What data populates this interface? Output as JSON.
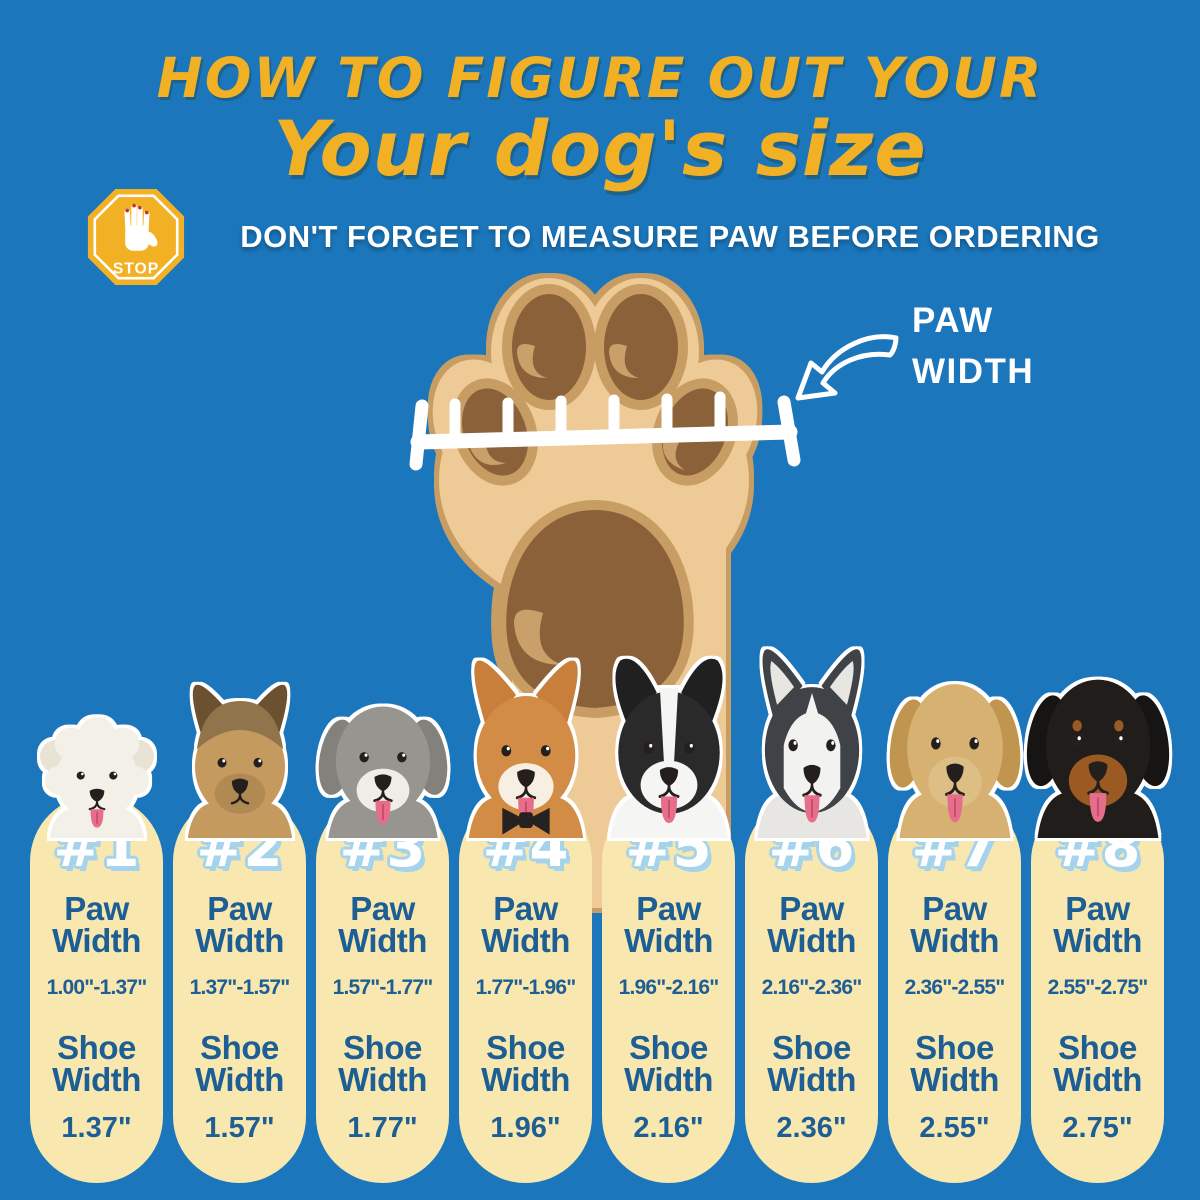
{
  "header": {
    "line1": "HOW TO FIGURE OUT YOUR",
    "line2": "Your dog's size",
    "subtitle": "DON'T FORGET TO MEASURE PAW BEFORE ORDERING",
    "stop_label": "STOP"
  },
  "paw_label": {
    "line1": "PAW",
    "line2": "WIDTH"
  },
  "labels": {
    "paw_width": "Paw Width",
    "shoe_width": "Shoe Width"
  },
  "colors": {
    "background": "#1B76BB",
    "title_yellow": "#F2B124",
    "cream": "#F8E7AE",
    "text_blue": "#1D5E94",
    "number_outline": "#A5D3EC",
    "paw_light": "#EDCA96",
    "paw_mid": "#C79D63",
    "pad_dark": "#8B6139",
    "pad_highlight": "#C9A06A"
  },
  "sizes": [
    {
      "number": "#1",
      "paw_range": "1.00\"-1.37\"",
      "shoe_width": "1.37\"",
      "dog": {
        "breed": "bichon-frise",
        "head": "#F3F0E8",
        "ear": "#E9E3D6",
        "muzzle": "#F3F0E8",
        "ear_type": "round",
        "fluff": true,
        "tongue": true
      }
    },
    {
      "number": "#2",
      "paw_range": "1.37\"-1.57\"",
      "shoe_width": "1.57\"",
      "dog": {
        "breed": "yorkshire-terrier",
        "head": "#C59A5E",
        "crown": "#8F744C",
        "ear": "#6B512F",
        "muzzle": "#B18952",
        "ear_type": "pointy",
        "tongue": false
      }
    },
    {
      "number": "#3",
      "paw_range": "1.57\"-1.77\"",
      "shoe_width": "1.77\"",
      "dog": {
        "breed": "bearded-collie",
        "head": "#97958F",
        "ear": "#83817B",
        "muzzle": "#EFEDE6",
        "ear_type": "floppy",
        "tongue": true
      }
    },
    {
      "number": "#4",
      "paw_range": "1.77\"-1.96\"",
      "shoe_width": "1.96\"",
      "dog": {
        "breed": "shiba-inu",
        "head": "#D28C45",
        "ear": "#C97F3C",
        "muzzle": "#F6EFE2",
        "ear_type": "pointy",
        "tongue": true,
        "accessory": "bowtie",
        "accessory_color": "#26221F"
      }
    },
    {
      "number": "#5",
      "paw_range": "1.96\"-2.16\"",
      "shoe_width": "2.16\"",
      "dog": {
        "breed": "border-collie",
        "head": "#2A2A2A",
        "ear": "#202020",
        "muzzle": "#F5F5F3",
        "blaze": "#F5F5F3",
        "body": "#F5F5F3",
        "ear_type": "semi",
        "tongue": true
      }
    },
    {
      "number": "#6",
      "paw_range": "2.16\"-2.36\"",
      "shoe_width": "2.36\"",
      "dog": {
        "breed": "siberian-husky",
        "head": "#3F4347",
        "ear": "#3F4347",
        "ear_inner": "#E8E6E2",
        "muzzle": "#F2F2F0",
        "mask": "#F2F2F0",
        "body": "#E8E6E2",
        "ear_type": "pointy",
        "tongue": true
      }
    },
    {
      "number": "#7",
      "paw_range": "2.36\"-2.55\"",
      "shoe_width": "2.55\"",
      "dog": {
        "breed": "golden-retriever",
        "head": "#D7B171",
        "ear": "#C0954F",
        "muzzle": "#DDBE85",
        "ear_type": "floppy",
        "tongue": true
      }
    },
    {
      "number": "#8",
      "paw_range": "2.55\"-2.75\"",
      "shoe_width": "2.75\"",
      "dog": {
        "breed": "rottweiler",
        "head": "#201D1A",
        "ear": "#171513",
        "muzzle": "#9A5A22",
        "brow": "#9A5A22",
        "ear_type": "floppy",
        "tongue": true
      }
    }
  ]
}
